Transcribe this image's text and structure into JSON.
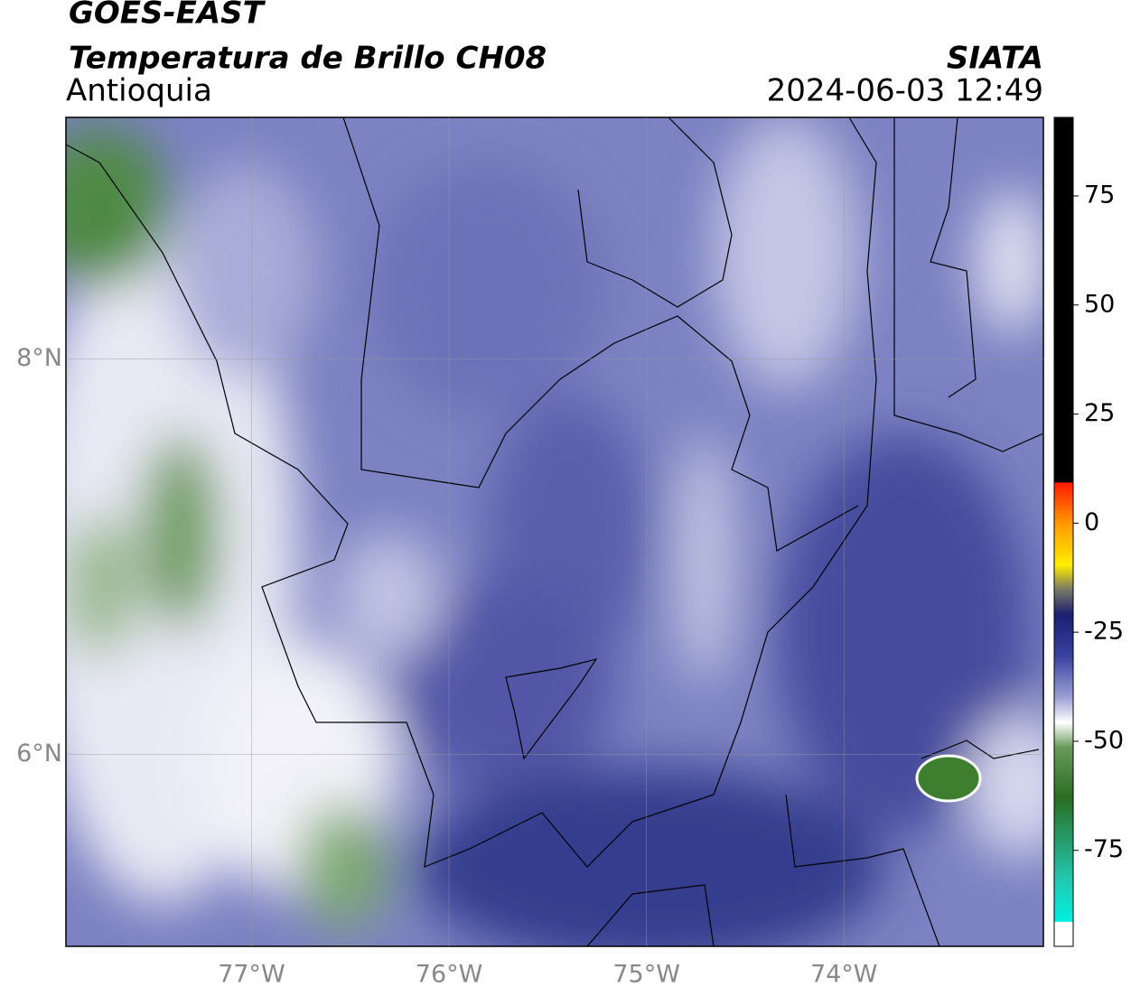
{
  "header": {
    "title": "GOES-EAST",
    "subtitle": "Temperatura de Brillo CH08",
    "region": "Antioquia",
    "source": "SIATA",
    "datetime": "2024-06-03 12:49"
  },
  "map": {
    "lonlim": [
      -77.94,
      -72.99
    ],
    "latlim": [
      5.03,
      9.22
    ],
    "lon_ticks": [
      {
        "value": -77,
        "label": "77°W"
      },
      {
        "value": -76,
        "label": "76°W"
      },
      {
        "value": -75,
        "label": "75°W"
      },
      {
        "value": -74,
        "label": "74°W"
      }
    ],
    "lat_ticks": [
      {
        "value": 8,
        "label": "8°N"
      },
      {
        "value": 6,
        "label": "6°N"
      }
    ],
    "grid": true
  },
  "colorbar": {
    "lim": [
      -97,
      93
    ],
    "ticks": [
      75,
      50,
      25,
      0,
      -25,
      -50,
      -75
    ]
  }
}
